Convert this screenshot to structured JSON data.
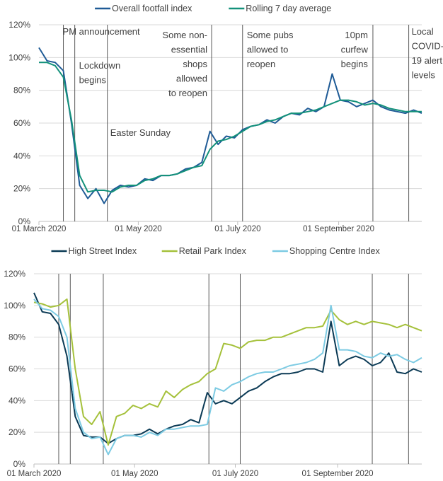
{
  "chart_data": [
    {
      "type": "line",
      "title": "",
      "xlabel": "",
      "ylabel": "",
      "ylim": [
        0,
        120
      ],
      "y_ticks": [
        "0%",
        "20%",
        "40%",
        "60%",
        "80%",
        "100%",
        "120%"
      ],
      "x_ticks": [
        {
          "label": "01 March 2020",
          "date": "2020-03-01"
        },
        {
          "label": "01 May 2020",
          "date": "2020-05-01"
        },
        {
          "label": "01 July 2020",
          "date": "2020-07-01"
        },
        {
          "label": "01 September 2020",
          "date": "2020-09-01"
        }
      ],
      "grid": true,
      "legend": "top",
      "x": [
        "2020-03-01",
        "2020-03-06",
        "2020-03-11",
        "2020-03-16",
        "2020-03-21",
        "2020-03-26",
        "2020-03-31",
        "2020-04-05",
        "2020-04-10",
        "2020-04-15",
        "2020-04-20",
        "2020-04-25",
        "2020-04-30",
        "2020-05-05",
        "2020-05-10",
        "2020-05-15",
        "2020-05-20",
        "2020-05-25",
        "2020-05-30",
        "2020-06-04",
        "2020-06-09",
        "2020-06-14",
        "2020-06-19",
        "2020-06-24",
        "2020-06-29",
        "2020-07-04",
        "2020-07-09",
        "2020-07-14",
        "2020-07-19",
        "2020-07-24",
        "2020-07-29",
        "2020-08-03",
        "2020-08-08",
        "2020-08-13",
        "2020-08-18",
        "2020-08-23",
        "2020-08-28",
        "2020-09-02",
        "2020-09-07",
        "2020-09-12",
        "2020-09-17",
        "2020-09-22",
        "2020-09-27",
        "2020-10-02",
        "2020-10-07",
        "2020-10-12",
        "2020-10-17",
        "2020-10-22"
      ],
      "series": [
        {
          "name": "Overall footfall index",
          "color": "#1f5b96",
          "values": [
            106,
            98,
            97,
            92,
            60,
            22,
            14,
            20,
            11,
            19,
            22,
            21,
            22,
            26,
            25,
            28,
            28,
            29,
            32,
            33,
            36,
            55,
            47,
            52,
            51,
            56,
            58,
            59,
            62,
            60,
            64,
            66,
            65,
            69,
            67,
            70,
            90,
            74,
            73,
            70,
            72,
            74,
            70,
            68,
            67,
            66,
            68,
            66
          ]
        },
        {
          "name": "Rolling 7 day average",
          "color": "#13917a",
          "values": [
            97,
            97,
            95,
            88,
            62,
            28,
            18,
            19,
            19,
            18,
            21,
            22,
            22,
            25,
            26,
            28,
            28,
            29,
            31,
            33,
            34,
            44,
            49,
            50,
            52,
            55,
            58,
            59,
            61,
            62,
            64,
            66,
            66,
            67,
            68,
            70,
            72,
            74,
            74,
            73,
            71,
            72,
            71,
            69,
            68,
            67,
            67,
            67
          ]
        }
      ],
      "annotations": [
        {
          "date": "2020-03-16",
          "lines": [
            "PM announcement"
          ]
        },
        {
          "date": "2020-03-23",
          "lines": [
            "Lockdown",
            "begins"
          ]
        },
        {
          "date": "2020-04-12",
          "lines": [
            "Easter Sunday"
          ]
        },
        {
          "date": "2020-06-15",
          "lines": [
            "Some non-",
            "essential",
            "shops",
            "allowed",
            "to reopen"
          ]
        },
        {
          "date": "2020-07-04",
          "lines": [
            "Some pubs",
            "allowed to",
            "reopen"
          ]
        },
        {
          "date": "2020-09-22",
          "lines": [
            "10pm",
            "curfew",
            "begins"
          ]
        },
        {
          "date": "2020-10-14",
          "lines": [
            "Local",
            "COVID-",
            "19 alert",
            "levels"
          ]
        }
      ]
    },
    {
      "type": "line",
      "title": "",
      "xlabel": "",
      "ylabel": "",
      "ylim": [
        0,
        120
      ],
      "y_ticks": [
        "0%",
        "20%",
        "40%",
        "60%",
        "80%",
        "100%",
        "120%"
      ],
      "x_ticks": [
        {
          "label": "01 March 2020",
          "date": "2020-03-01"
        },
        {
          "label": "01 May 2020",
          "date": "2020-05-01"
        },
        {
          "label": "01 July 2020",
          "date": "2020-07-01"
        },
        {
          "label": "01 September 2020",
          "date": "2020-09-01"
        }
      ],
      "grid": true,
      "legend": "top",
      "x": [
        "2020-03-01",
        "2020-03-06",
        "2020-03-11",
        "2020-03-16",
        "2020-03-21",
        "2020-03-26",
        "2020-03-31",
        "2020-04-05",
        "2020-04-10",
        "2020-04-15",
        "2020-04-20",
        "2020-04-25",
        "2020-04-30",
        "2020-05-05",
        "2020-05-10",
        "2020-05-15",
        "2020-05-20",
        "2020-05-25",
        "2020-05-30",
        "2020-06-04",
        "2020-06-09",
        "2020-06-14",
        "2020-06-19",
        "2020-06-24",
        "2020-06-29",
        "2020-07-04",
        "2020-07-09",
        "2020-07-14",
        "2020-07-19",
        "2020-07-24",
        "2020-07-29",
        "2020-08-03",
        "2020-08-08",
        "2020-08-13",
        "2020-08-18",
        "2020-08-23",
        "2020-08-28",
        "2020-09-02",
        "2020-09-07",
        "2020-09-12",
        "2020-09-17",
        "2020-09-22",
        "2020-09-27",
        "2020-10-02",
        "2020-10-07",
        "2020-10-12",
        "2020-10-17",
        "2020-10-22"
      ],
      "series": [
        {
          "name": "High Street Index",
          "color": "#0b3a55",
          "values": [
            108,
            96,
            95,
            88,
            68,
            30,
            18,
            17,
            17,
            13,
            16,
            18,
            18,
            19,
            22,
            19,
            22,
            24,
            25,
            28,
            26,
            45,
            38,
            40,
            38,
            42,
            46,
            48,
            52,
            55,
            57,
            57,
            58,
            60,
            60,
            58,
            90,
            62,
            66,
            68,
            66,
            62,
            64,
            70,
            58,
            57,
            60,
            58
          ]
        },
        {
          "name": "Retail Park Index",
          "color": "#a5c13b",
          "values": [
            102,
            101,
            99,
            100,
            104,
            60,
            30,
            25,
            33,
            12,
            30,
            32,
            37,
            35,
            38,
            36,
            46,
            42,
            47,
            50,
            52,
            57,
            60,
            76,
            75,
            73,
            77,
            78,
            78,
            80,
            80,
            82,
            84,
            86,
            86,
            87,
            97,
            91,
            88,
            90,
            88,
            90,
            89,
            88,
            86,
            88,
            86,
            84
          ]
        },
        {
          "name": "Shopping Centre Index",
          "color": "#7dcbe3",
          "values": [
            104,
            98,
            97,
            93,
            80,
            35,
            20,
            16,
            17,
            6,
            16,
            18,
            18,
            17,
            20,
            18,
            22,
            22,
            23,
            24,
            24,
            25,
            48,
            46,
            50,
            52,
            55,
            57,
            58,
            58,
            60,
            62,
            63,
            64,
            66,
            70,
            100,
            72,
            72,
            71,
            68,
            67,
            70,
            68,
            69,
            66,
            64,
            67
          ]
        }
      ],
      "event_dates": [
        "2020-03-16",
        "2020-03-23",
        "2020-04-12",
        "2020-06-15",
        "2020-07-04",
        "2020-09-22",
        "2020-10-14"
      ]
    }
  ]
}
